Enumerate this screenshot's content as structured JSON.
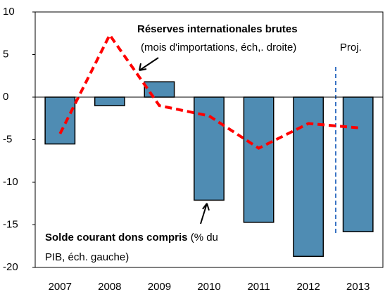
{
  "chart_data": {
    "type": "bar_line",
    "categories": [
      "2007",
      "2008",
      "2009",
      "2010",
      "2011",
      "2012",
      "2013"
    ],
    "series": [
      {
        "name": "Solde courant dons compris",
        "type": "bar",
        "color": "#4f8cb3",
        "values": [
          -5.5,
          -1,
          1.8,
          -12.1,
          -14.7,
          -18.7,
          -15.8
        ]
      },
      {
        "name": "Réserves internationales brutes",
        "type": "line",
        "color": "#ff0000",
        "values": [
          -4.3,
          7.3,
          -1.0,
          -2.2,
          -6.0,
          -3.1,
          -3.6
        ]
      }
    ],
    "ylim": [
      -20,
      10
    ],
    "yticks": [
      10,
      5,
      0,
      -5,
      -10,
      -15,
      -20
    ],
    "annotations": {
      "reserves_title": "Réserves internationales brutes",
      "reserves_sub": "(mois d'importations, éch,. droite)",
      "proj": "Proj.",
      "solde_title": "Solde courant dons compris",
      "solde_sub1": " (% du",
      "solde_sub2": "PIB, éch. gauche)"
    }
  }
}
